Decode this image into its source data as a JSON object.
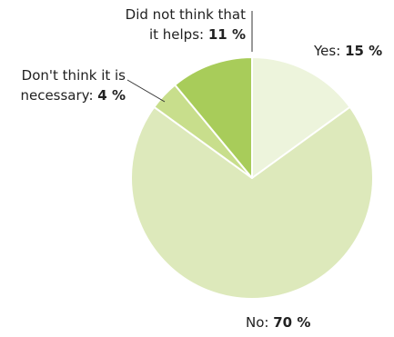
{
  "chart_data": {
    "type": "pie",
    "slices": [
      {
        "label": "Yes:",
        "value": 15,
        "value_label": "15 %",
        "color": "#edf4dc"
      },
      {
        "label": "No:",
        "value": 70,
        "value_label": "70 %",
        "color": "#dde9bb"
      },
      {
        "label_lines": [
          "Don't think it is",
          "necessary:"
        ],
        "value": 4,
        "value_label": "4 %",
        "color": "#c8de8c"
      },
      {
        "label_lines": [
          "Did not think that",
          "it helps:"
        ],
        "value": 11,
        "value_label": "11 %",
        "color": "#a8cc5a"
      }
    ]
  }
}
